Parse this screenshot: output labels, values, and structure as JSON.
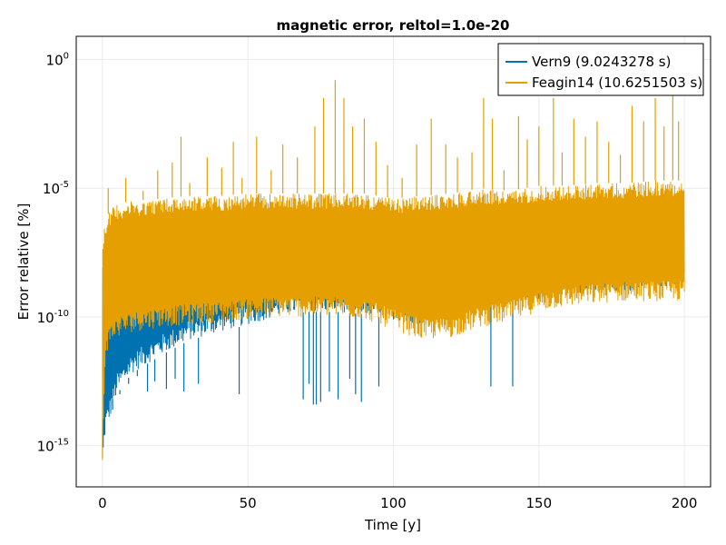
{
  "chart_data": {
    "type": "line",
    "title": "magnetic error, reltol=1.0e-20",
    "xlabel": "Time [y]",
    "ylabel": "Error relative [%]",
    "xlim": [
      -9,
      209
    ],
    "ylim_log10": [
      -16.6,
      0.9
    ],
    "y_scale": "log10",
    "grid": true,
    "legend_position": "top-right",
    "x_ticks": [
      {
        "value": 0,
        "label": "0"
      },
      {
        "value": 50,
        "label": "50"
      },
      {
        "value": 100,
        "label": "100"
      },
      {
        "value": 150,
        "label": "150"
      },
      {
        "value": 200,
        "label": "200"
      }
    ],
    "y_ticks": [
      {
        "exp": 0,
        "base": "10",
        "sup": "0"
      },
      {
        "exp": -5,
        "base": "10",
        "sup": "-5"
      },
      {
        "exp": -10,
        "base": "10",
        "sup": "-10"
      },
      {
        "exp": -15,
        "base": "10",
        "sup": "-15"
      }
    ],
    "series": [
      {
        "name": "Vern9 (9.0243278 s)",
        "color": "#0072b2",
        "envelope_time": [
          0,
          1,
          3,
          5,
          10,
          20,
          30,
          40,
          50,
          60,
          70,
          80,
          90,
          100,
          110,
          120,
          130,
          140,
          150,
          160,
          170,
          180,
          190,
          200
        ],
        "envelope_lower_log10": [
          -16.0,
          -14.5,
          -13.8,
          -13.0,
          -12.2,
          -11.5,
          -10.9,
          -10.6,
          -10.3,
          -10.0,
          -9.8,
          -9.8,
          -9.9,
          -10.1,
          -10.3,
          -10.0,
          -9.6,
          -9.2,
          -9.3,
          -9.2,
          -9.0,
          -9.0,
          -8.9,
          -8.9
        ],
        "envelope_upper_log10": [
          -8.0,
          -7.4,
          -7.0,
          -6.8,
          -6.6,
          -6.4,
          -6.3,
          -6.3,
          -6.2,
          -6.2,
          -6.3,
          -6.3,
          -6.3,
          -6.3,
          -6.4,
          -6.3,
          -6.2,
          -6.2,
          -6.1,
          -6.1,
          -6.0,
          -6.0,
          -6.0,
          -6.0
        ],
        "deep_spikes": [
          {
            "t": 3.5,
            "log10": -13.2
          },
          {
            "t": 6,
            "log10": -13.0
          },
          {
            "t": 9,
            "log10": -12.6
          },
          {
            "t": 12,
            "log10": -12.3
          },
          {
            "t": 15.5,
            "log10": -12.9
          },
          {
            "t": 18,
            "log10": -12.5
          },
          {
            "t": 22,
            "log10": -12.8
          },
          {
            "t": 25,
            "log10": -12.4
          },
          {
            "t": 28,
            "log10": -12.9
          },
          {
            "t": 33,
            "log10": -12.6
          },
          {
            "t": 47,
            "log10": -13.0
          },
          {
            "t": 69,
            "log10": -13.2
          },
          {
            "t": 71,
            "log10": -12.6
          },
          {
            "t": 72.5,
            "log10": -13.4
          },
          {
            "t": 73.5,
            "log10": -13.4
          },
          {
            "t": 75,
            "log10": -13.3
          },
          {
            "t": 78,
            "log10": -12.9
          },
          {
            "t": 81,
            "log10": -13.2
          },
          {
            "t": 85,
            "log10": -12.4
          },
          {
            "t": 87,
            "log10": -13.0
          },
          {
            "t": 89,
            "log10": -13.3
          },
          {
            "t": 95,
            "log10": -12.7
          },
          {
            "t": 133.5,
            "log10": -12.7
          },
          {
            "t": 141,
            "log10": -12.7
          }
        ],
        "top_spikes": []
      },
      {
        "name": "Feagin14 (10.6251503 s)",
        "color": "#e69f00",
        "envelope_time": [
          0,
          1,
          3,
          5,
          10,
          20,
          30,
          40,
          50,
          60,
          70,
          80,
          90,
          100,
          110,
          120,
          130,
          140,
          150,
          160,
          170,
          180,
          190,
          200
        ],
        "envelope_lower_log10": [
          -15.8,
          -11.5,
          -11.0,
          -10.8,
          -10.6,
          -10.4,
          -10.3,
          -10.2,
          -10.1,
          -10.0,
          -10.0,
          -10.0,
          -10.1,
          -10.5,
          -10.9,
          -10.8,
          -10.4,
          -10.2,
          -9.8,
          -9.6,
          -9.5,
          -9.4,
          -9.4,
          -9.4
        ],
        "envelope_upper_log10": [
          -7.0,
          -6.2,
          -5.8,
          -5.6,
          -5.5,
          -5.4,
          -5.3,
          -5.3,
          -5.2,
          -5.2,
          -5.2,
          -5.2,
          -5.2,
          -5.4,
          -5.3,
          -5.2,
          -5.0,
          -5.1,
          -4.9,
          -4.9,
          -4.8,
          -4.8,
          -4.7,
          -4.7
        ],
        "deep_spikes": [],
        "top_spikes": [
          {
            "t": 2,
            "log10": -5.0
          },
          {
            "t": 8,
            "log10": -4.6
          },
          {
            "t": 14,
            "log10": -5.1
          },
          {
            "t": 19,
            "log10": -4.3
          },
          {
            "t": 24,
            "log10": -4.0
          },
          {
            "t": 27,
            "log10": -3.0
          },
          {
            "t": 30,
            "log10": -4.8
          },
          {
            "t": 36,
            "log10": -3.8
          },
          {
            "t": 41,
            "log10": -4.2
          },
          {
            "t": 45,
            "log10": -3.2
          },
          {
            "t": 48,
            "log10": -4.6
          },
          {
            "t": 53,
            "log10": -3.0
          },
          {
            "t": 58,
            "log10": -4.3
          },
          {
            "t": 62,
            "log10": -3.3
          },
          {
            "t": 67,
            "log10": -3.8
          },
          {
            "t": 73,
            "log10": -2.6
          },
          {
            "t": 76,
            "log10": -1.5
          },
          {
            "t": 80,
            "log10": -0.8
          },
          {
            "t": 83,
            "log10": -1.5
          },
          {
            "t": 86,
            "log10": -2.6
          },
          {
            "t": 90,
            "log10": -2.3
          },
          {
            "t": 94,
            "log10": -3.2
          },
          {
            "t": 98,
            "log10": -4.1
          },
          {
            "t": 103,
            "log10": -4.6
          },
          {
            "t": 108,
            "log10": -3.3
          },
          {
            "t": 113,
            "log10": -2.3
          },
          {
            "t": 118,
            "log10": -3.3
          },
          {
            "t": 122,
            "log10": -3.8
          },
          {
            "t": 127,
            "log10": -3.6
          },
          {
            "t": 131,
            "log10": -1.5
          },
          {
            "t": 134,
            "log10": -2.3
          },
          {
            "t": 138,
            "log10": -4.3
          },
          {
            "t": 143,
            "log10": -2.2
          },
          {
            "t": 146,
            "log10": -3.1
          },
          {
            "t": 150,
            "log10": -2.6
          },
          {
            "t": 155,
            "log10": -1.5
          },
          {
            "t": 158,
            "log10": -3.6
          },
          {
            "t": 162,
            "log10": -2.3
          },
          {
            "t": 166,
            "log10": -3.0
          },
          {
            "t": 170,
            "log10": -2.4
          },
          {
            "t": 174,
            "log10": -3.2
          },
          {
            "t": 178,
            "log10": -3.7
          },
          {
            "t": 182,
            "log10": -1.8
          },
          {
            "t": 186,
            "log10": -2.4
          },
          {
            "t": 190,
            "log10": -1.5
          },
          {
            "t": 193,
            "log10": -2.6
          },
          {
            "t": 196,
            "log10": -1.2
          },
          {
            "t": 198,
            "log10": -2.4
          }
        ]
      }
    ]
  }
}
